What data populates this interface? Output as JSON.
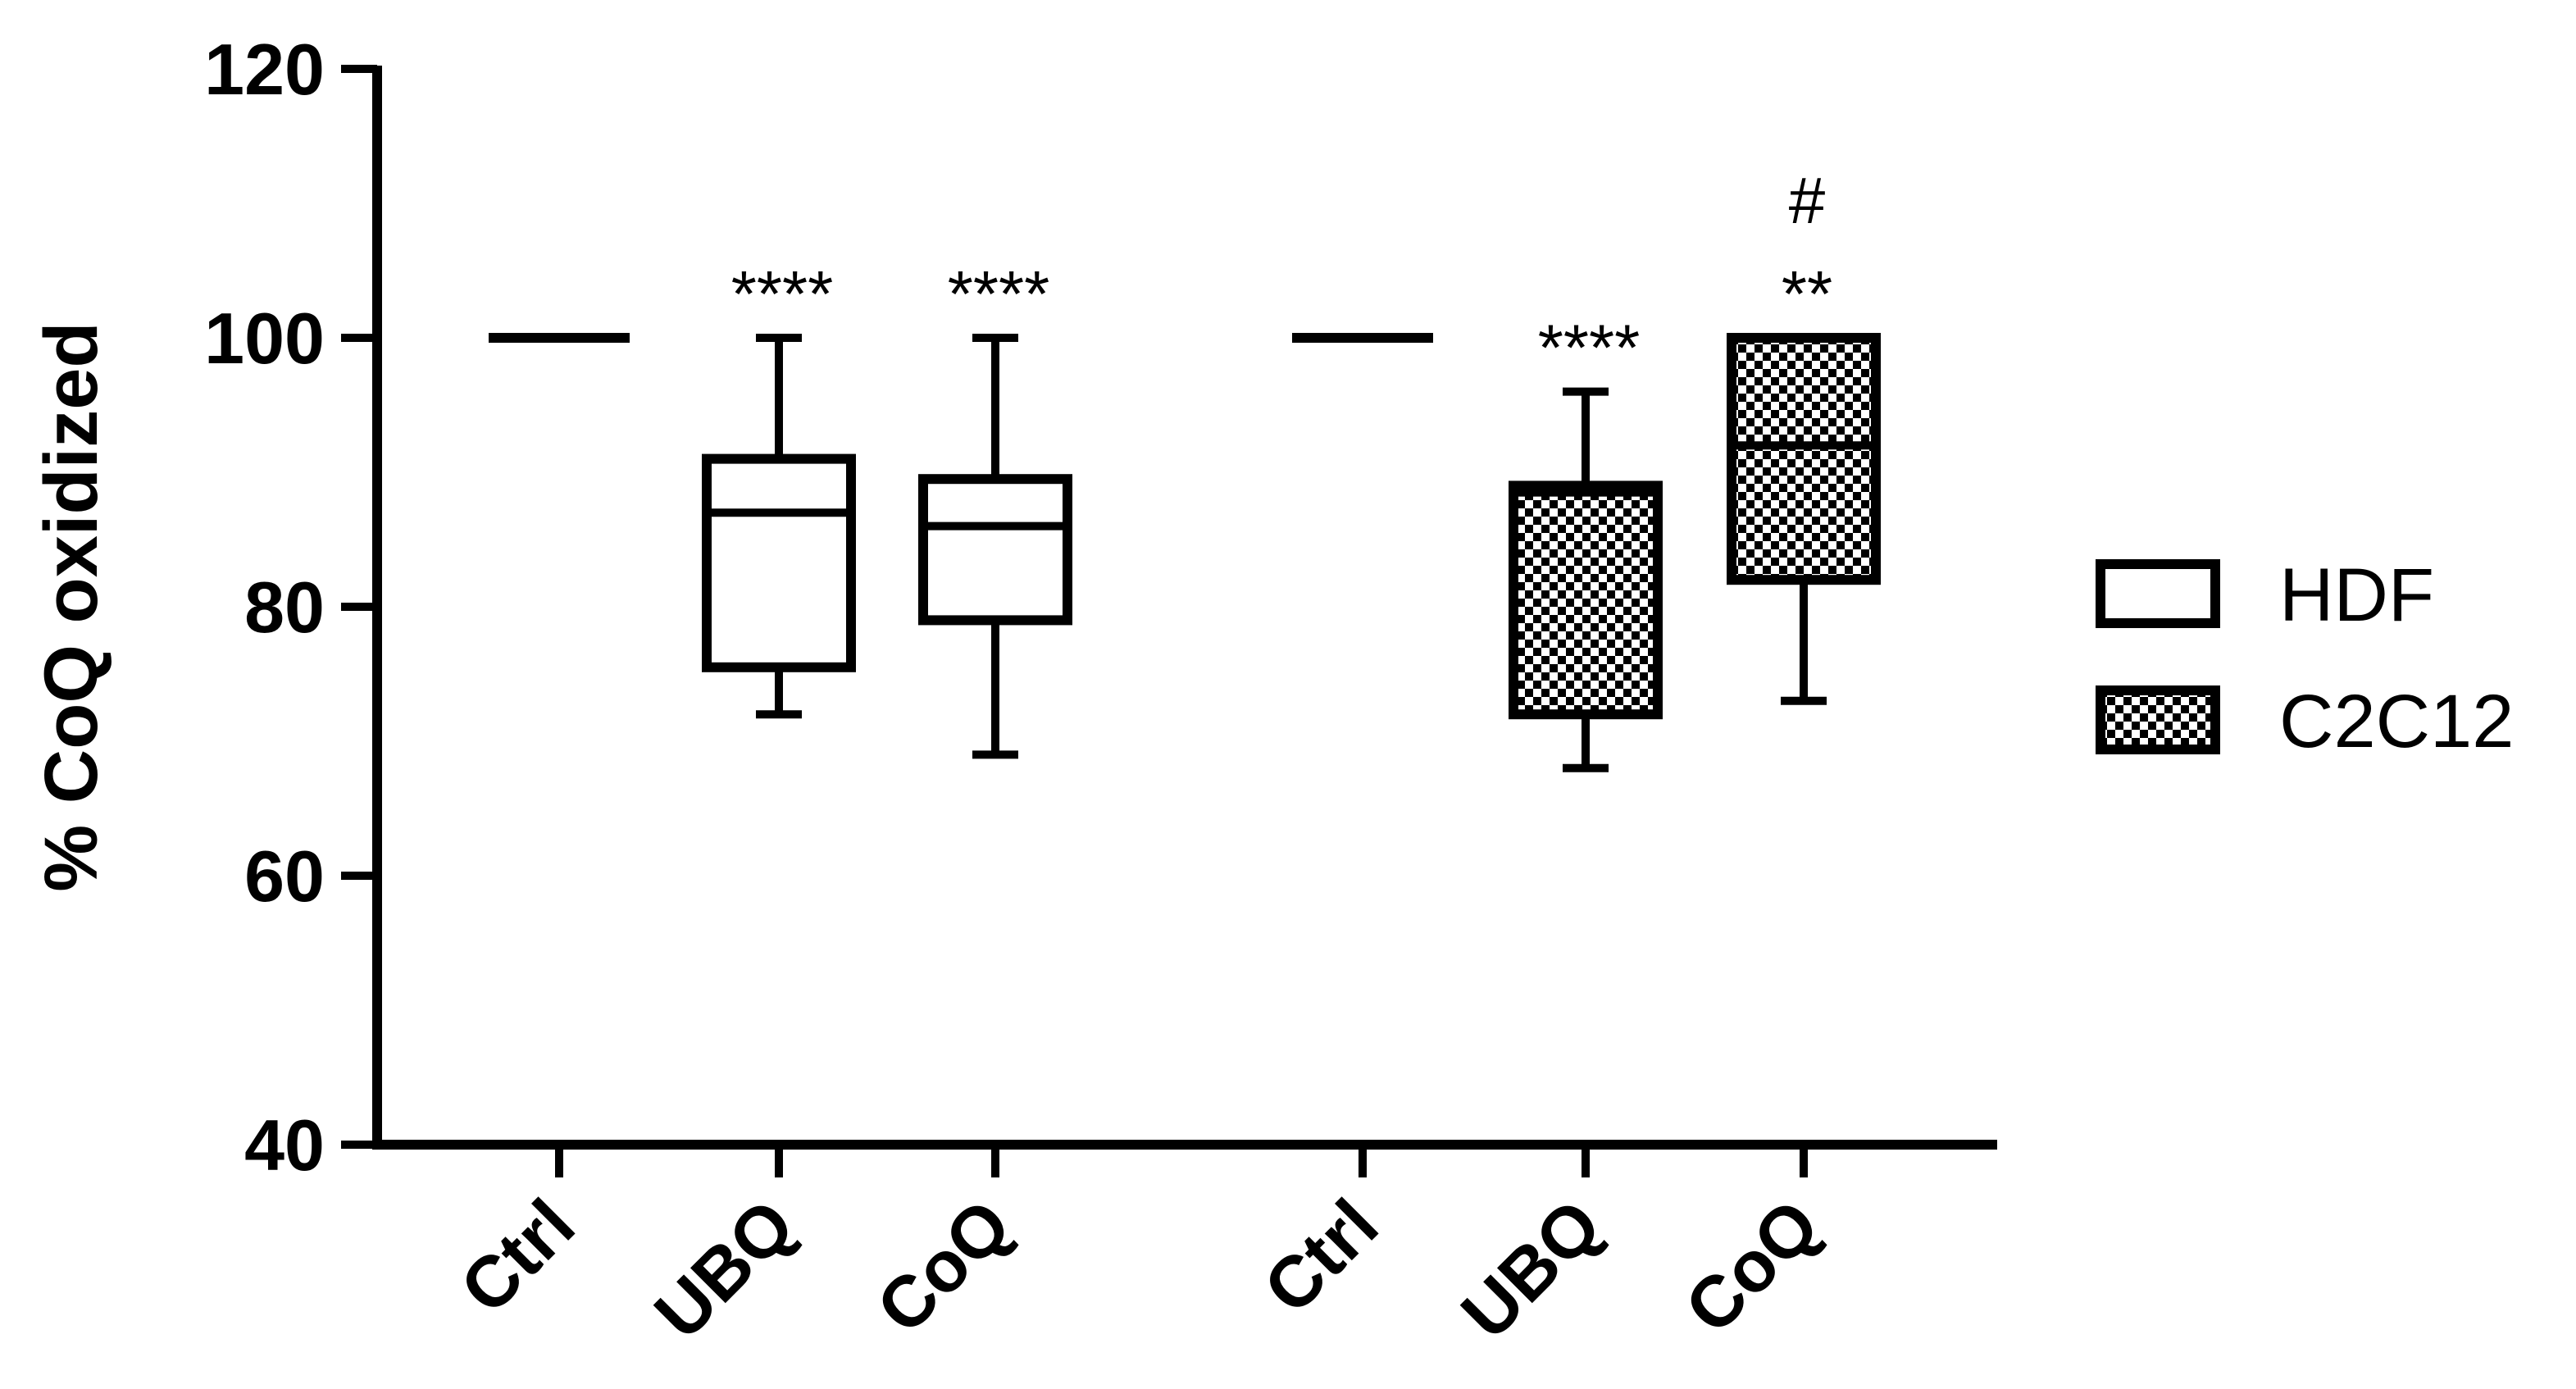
{
  "chart_data": {
    "type": "box",
    "title": "",
    "xlabel": "",
    "ylabel": "% CoQ oxidized",
    "ylim": [
      40,
      120
    ],
    "yticks": [
      40,
      60,
      80,
      100,
      120
    ],
    "grid": false,
    "legend_position": "right",
    "colors": {
      "stroke": "#000000",
      "background": "#ffffff",
      "hatch_dark": "#000000",
      "hatch_light": "#ffffff"
    },
    "series": [
      {
        "name": "HDF",
        "fill": "open",
        "boxes": [
          {
            "category": "Ctrl",
            "min": 100,
            "q1": 100,
            "median": 100,
            "q3": 100,
            "max": 100,
            "annotation": []
          },
          {
            "category": "UBQ",
            "min": 72,
            "q1": 75.5,
            "median": 87,
            "q3": 91,
            "max": 100,
            "annotation": [
              "****"
            ]
          },
          {
            "category": "CoQ",
            "min": 69,
            "q1": 79,
            "median": 86,
            "q3": 89.5,
            "max": 100,
            "annotation": [
              "****"
            ]
          }
        ]
      },
      {
        "name": "C2C12",
        "fill": "checkered",
        "boxes": [
          {
            "category": "Ctrl",
            "min": 100,
            "q1": 100,
            "median": 100,
            "q3": 100,
            "max": 100,
            "annotation": []
          },
          {
            "category": "UBQ",
            "min": 68,
            "q1": 72,
            "median": 88.5,
            "q3": 89,
            "max": 96,
            "annotation": [
              "****"
            ]
          },
          {
            "category": "CoQ",
            "min": 73,
            "q1": 82,
            "median": 92,
            "q3": 100,
            "max": 100,
            "annotation": [
              "**",
              "#"
            ]
          }
        ]
      }
    ]
  }
}
